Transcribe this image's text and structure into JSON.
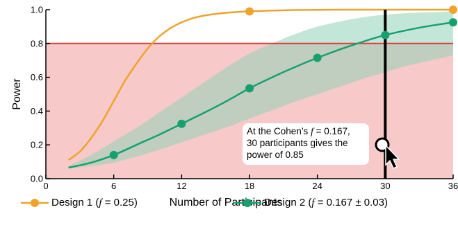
{
  "chart_data": {
    "type": "line",
    "xlabel": "Number of Participants",
    "ylabel": "Power",
    "xlim": [
      0,
      36
    ],
    "ylim": [
      0,
      1
    ],
    "x_ticks": [
      "0",
      "6",
      "12",
      "18",
      "24",
      "30",
      "36"
    ],
    "y_ticks": [
      "0.0",
      "0.2",
      "0.4",
      "0.6",
      "0.8",
      "1.0"
    ],
    "threshold": {
      "y": 0.8,
      "color": "#e03c3c",
      "shade_color": "#f8c9c9"
    },
    "highlight_x": 30,
    "series": [
      {
        "name": "Design 1 (f = 0.25)",
        "color": "#f0a32b",
        "x": [
          2,
          3,
          4,
          5,
          6,
          7,
          8,
          9,
          10,
          11,
          12,
          13,
          14,
          15,
          16,
          17,
          18,
          20,
          22,
          24,
          27,
          30,
          33,
          36
        ],
        "y": [
          0.11,
          0.16,
          0.24,
          0.34,
          0.46,
          0.58,
          0.68,
          0.77,
          0.84,
          0.89,
          0.925,
          0.95,
          0.965,
          0.975,
          0.982,
          0.987,
          0.99,
          0.995,
          0.998,
          0.999,
          1.0,
          1.0,
          1.0,
          1.0
        ],
        "markers": [
          18,
          36
        ]
      },
      {
        "name": "Design 2 (f = 0.167 ± 0.03)",
        "color": "#16a06e",
        "band_color": "#8fd1b7",
        "x": [
          2,
          4,
          6,
          8,
          10,
          12,
          14,
          16,
          18,
          20,
          22,
          24,
          26,
          28,
          30,
          32,
          34,
          36
        ],
        "y": [
          0.065,
          0.095,
          0.14,
          0.2,
          0.26,
          0.325,
          0.39,
          0.46,
          0.535,
          0.6,
          0.66,
          0.715,
          0.765,
          0.81,
          0.85,
          0.88,
          0.905,
          0.925
        ],
        "lower": [
          0.06,
          0.075,
          0.095,
          0.13,
          0.17,
          0.215,
          0.26,
          0.305,
          0.355,
          0.405,
          0.455,
          0.5,
          0.545,
          0.59,
          0.63,
          0.67,
          0.7,
          0.73
        ],
        "upper": [
          0.075,
          0.14,
          0.22,
          0.3,
          0.39,
          0.48,
          0.57,
          0.66,
          0.74,
          0.8,
          0.855,
          0.9,
          0.93,
          0.955,
          0.97,
          0.98,
          0.985,
          0.99
        ],
        "markers": [
          6,
          12,
          18,
          24,
          30,
          36
        ]
      }
    ]
  },
  "legend": {
    "design1": {
      "pre": "Design 1 (",
      "f": "f",
      "post": " = 0.25)"
    },
    "design2": {
      "pre": "Design 2 (",
      "f": "f",
      "post": " = 0.167 ± 0.03)"
    }
  },
  "callout": {
    "line1_pre": "At the Cohen’s ",
    "f": "f",
    "line1_post": " = 0.167,",
    "line2": "30 participants gives the",
    "line3": "power of 0.85"
  }
}
